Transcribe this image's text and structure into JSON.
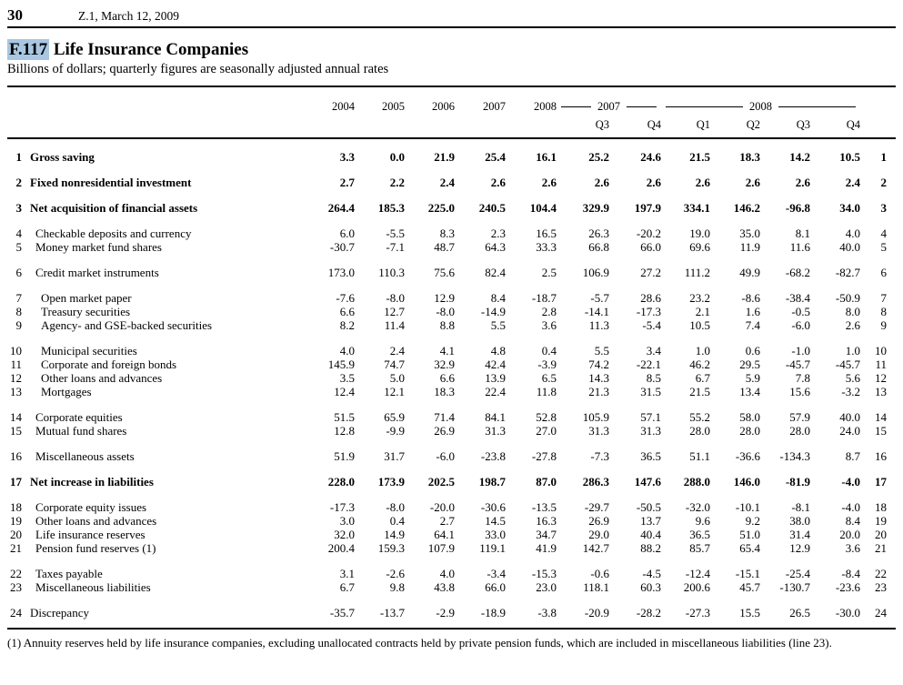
{
  "page": {
    "page_number": "30",
    "release": "Z.1, March 12, 2009"
  },
  "table": {
    "id": "F.117",
    "title": "Life Insurance Companies",
    "subtitle": "Billions of dollars; quarterly figures are seasonally adjusted annual rates",
    "year_columns": [
      "2004",
      "2005",
      "2006",
      "2007",
      "2008"
    ],
    "year_groups": [
      {
        "label": "2007",
        "span": 2
      },
      {
        "label": "2008",
        "span": 4
      }
    ],
    "quarter_columns": [
      "Q3",
      "Q4",
      "Q1",
      "Q2",
      "Q3",
      "Q4"
    ],
    "rows": [
      {
        "line": 1,
        "label": "Gross saving",
        "indent": 0,
        "bold": true,
        "gap_before": true,
        "values": [
          "3.3",
          "0.0",
          "21.9",
          "25.4",
          "16.1",
          "25.2",
          "24.6",
          "21.5",
          "18.3",
          "14.2",
          "10.5"
        ]
      },
      {
        "line": 2,
        "label": "Fixed nonresidential investment",
        "indent": 0,
        "bold": true,
        "gap_before": true,
        "values": [
          "2.7",
          "2.2",
          "2.4",
          "2.6",
          "2.6",
          "2.6",
          "2.6",
          "2.6",
          "2.6",
          "2.6",
          "2.4"
        ]
      },
      {
        "line": 3,
        "label": "Net acquisition of financial assets",
        "indent": 0,
        "bold": true,
        "gap_before": true,
        "values": [
          "264.4",
          "185.3",
          "225.0",
          "240.5",
          "104.4",
          "329.9",
          "197.9",
          "334.1",
          "146.2",
          "-96.8",
          "34.0"
        ]
      },
      {
        "line": 4,
        "label": "Checkable deposits and currency",
        "indent": 1,
        "bold": false,
        "gap_before": true,
        "values": [
          "6.0",
          "-5.5",
          "8.3",
          "2.3",
          "16.5",
          "26.3",
          "-20.2",
          "19.0",
          "35.0",
          "8.1",
          "4.0"
        ]
      },
      {
        "line": 5,
        "label": "Money market fund shares",
        "indent": 1,
        "bold": false,
        "gap_before": false,
        "values": [
          "-30.7",
          "-7.1",
          "48.7",
          "64.3",
          "33.3",
          "66.8",
          "66.0",
          "69.6",
          "11.9",
          "11.6",
          "40.0"
        ]
      },
      {
        "line": 6,
        "label": "Credit market instruments",
        "indent": 1,
        "bold": false,
        "gap_before": true,
        "values": [
          "173.0",
          "110.3",
          "75.6",
          "82.4",
          "2.5",
          "106.9",
          "27.2",
          "111.2",
          "49.9",
          "-68.2",
          "-82.7"
        ]
      },
      {
        "line": 7,
        "label": "Open market paper",
        "indent": 2,
        "bold": false,
        "gap_before": true,
        "values": [
          "-7.6",
          "-8.0",
          "12.9",
          "8.4",
          "-18.7",
          "-5.7",
          "28.6",
          "23.2",
          "-8.6",
          "-38.4",
          "-50.9"
        ]
      },
      {
        "line": 8,
        "label": "Treasury securities",
        "indent": 2,
        "bold": false,
        "gap_before": false,
        "values": [
          "6.6",
          "12.7",
          "-8.0",
          "-14.9",
          "2.8",
          "-14.1",
          "-17.3",
          "2.1",
          "1.6",
          "-0.5",
          "8.0"
        ]
      },
      {
        "line": 9,
        "label": "Agency- and GSE-backed securities",
        "indent": 2,
        "bold": false,
        "gap_before": false,
        "values": [
          "8.2",
          "11.4",
          "8.8",
          "5.5",
          "3.6",
          "11.3",
          "-5.4",
          "10.5",
          "7.4",
          "-6.0",
          "2.6"
        ]
      },
      {
        "line": 10,
        "label": "Municipal securities",
        "indent": 2,
        "bold": false,
        "gap_before": true,
        "values": [
          "4.0",
          "2.4",
          "4.1",
          "4.8",
          "0.4",
          "5.5",
          "3.4",
          "1.0",
          "0.6",
          "-1.0",
          "1.0"
        ]
      },
      {
        "line": 11,
        "label": "Corporate and foreign bonds",
        "indent": 2,
        "bold": false,
        "gap_before": false,
        "values": [
          "145.9",
          "74.7",
          "32.9",
          "42.4",
          "-3.9",
          "74.2",
          "-22.1",
          "46.2",
          "29.5",
          "-45.7",
          "-45.7"
        ]
      },
      {
        "line": 12,
        "label": "Other loans and advances",
        "indent": 2,
        "bold": false,
        "gap_before": false,
        "values": [
          "3.5",
          "5.0",
          "6.6",
          "13.9",
          "6.5",
          "14.3",
          "8.5",
          "6.7",
          "5.9",
          "7.8",
          "5.6"
        ]
      },
      {
        "line": 13,
        "label": "Mortgages",
        "indent": 2,
        "bold": false,
        "gap_before": false,
        "values": [
          "12.4",
          "12.1",
          "18.3",
          "22.4",
          "11.8",
          "21.3",
          "31.5",
          "21.5",
          "13.4",
          "15.6",
          "-3.2"
        ]
      },
      {
        "line": 14,
        "label": "Corporate equities",
        "indent": 1,
        "bold": false,
        "gap_before": true,
        "values": [
          "51.5",
          "65.9",
          "71.4",
          "84.1",
          "52.8",
          "105.9",
          "57.1",
          "55.2",
          "58.0",
          "57.9",
          "40.0"
        ]
      },
      {
        "line": 15,
        "label": "Mutual fund shares",
        "indent": 1,
        "bold": false,
        "gap_before": false,
        "values": [
          "12.8",
          "-9.9",
          "26.9",
          "31.3",
          "27.0",
          "31.3",
          "31.3",
          "28.0",
          "28.0",
          "28.0",
          "24.0"
        ]
      },
      {
        "line": 16,
        "label": "Miscellaneous assets",
        "indent": 1,
        "bold": false,
        "gap_before": true,
        "values": [
          "51.9",
          "31.7",
          "-6.0",
          "-23.8",
          "-27.8",
          "-7.3",
          "36.5",
          "51.1",
          "-36.6",
          "-134.3",
          "8.7"
        ]
      },
      {
        "line": 17,
        "label": "Net increase in liabilities",
        "indent": 0,
        "bold": true,
        "gap_before": true,
        "values": [
          "228.0",
          "173.9",
          "202.5",
          "198.7",
          "87.0",
          "286.3",
          "147.6",
          "288.0",
          "146.0",
          "-81.9",
          "-4.0"
        ]
      },
      {
        "line": 18,
        "label": "Corporate equity issues",
        "indent": 1,
        "bold": false,
        "gap_before": true,
        "values": [
          "-17.3",
          "-8.0",
          "-20.0",
          "-30.6",
          "-13.5",
          "-29.7",
          "-50.5",
          "-32.0",
          "-10.1",
          "-8.1",
          "-4.0"
        ]
      },
      {
        "line": 19,
        "label": "Other loans and advances",
        "indent": 1,
        "bold": false,
        "gap_before": false,
        "values": [
          "3.0",
          "0.4",
          "2.7",
          "14.5",
          "16.3",
          "26.9",
          "13.7",
          "9.6",
          "9.2",
          "38.0",
          "8.4"
        ]
      },
      {
        "line": 20,
        "label": "Life insurance reserves",
        "indent": 1,
        "bold": false,
        "gap_before": false,
        "values": [
          "32.0",
          "14.9",
          "64.1",
          "33.0",
          "34.7",
          "29.0",
          "40.4",
          "36.5",
          "51.0",
          "31.4",
          "20.0"
        ]
      },
      {
        "line": 21,
        "label": "Pension fund reserves (1)",
        "indent": 1,
        "bold": false,
        "gap_before": false,
        "values": [
          "200.4",
          "159.3",
          "107.9",
          "119.1",
          "41.9",
          "142.7",
          "88.2",
          "85.7",
          "65.4",
          "12.9",
          "3.6"
        ]
      },
      {
        "line": 22,
        "label": "Taxes payable",
        "indent": 1,
        "bold": false,
        "gap_before": true,
        "values": [
          "3.1",
          "-2.6",
          "4.0",
          "-3.4",
          "-15.3",
          "-0.6",
          "-4.5",
          "-12.4",
          "-15.1",
          "-25.4",
          "-8.4"
        ]
      },
      {
        "line": 23,
        "label": "Miscellaneous liabilities",
        "indent": 1,
        "bold": false,
        "gap_before": false,
        "values": [
          "6.7",
          "9.8",
          "43.8",
          "66.0",
          "23.0",
          "118.1",
          "60.3",
          "200.6",
          "45.7",
          "-130.7",
          "-23.6"
        ]
      },
      {
        "line": 24,
        "label": "Discrepancy",
        "indent": 0,
        "bold": false,
        "gap_before": true,
        "values": [
          "-35.7",
          "-13.7",
          "-2.9",
          "-18.9",
          "-3.8",
          "-20.9",
          "-28.2",
          "-27.3",
          "15.5",
          "26.5",
          "-30.0"
        ]
      }
    ],
    "footnote": "(1) Annuity reserves held by life insurance companies, excluding unallocated contracts held by private pension funds, which are included in miscellaneous liabilities (line 23)."
  }
}
